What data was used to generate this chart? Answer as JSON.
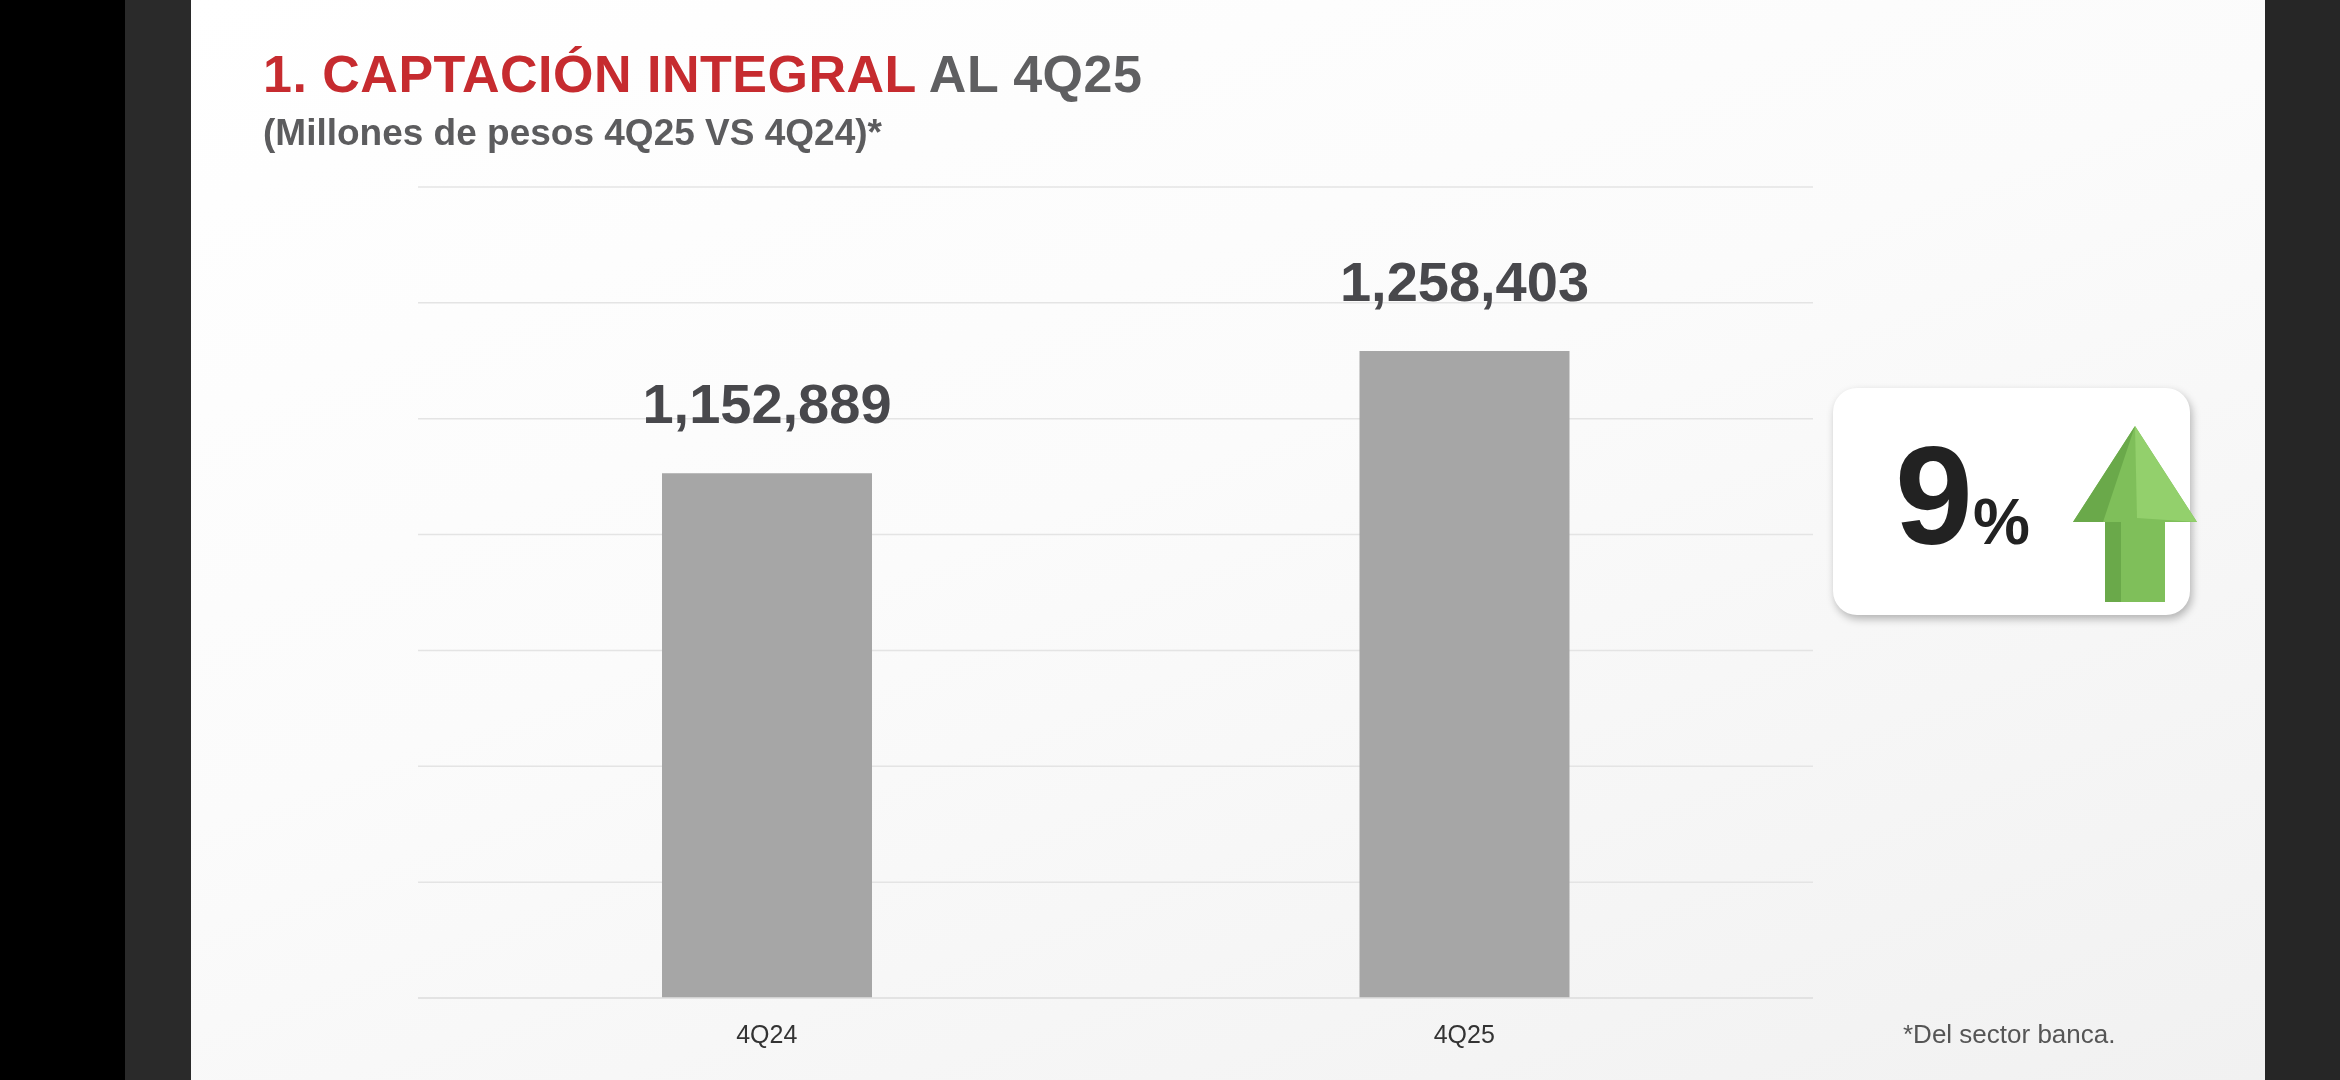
{
  "chart_data": {
    "type": "bar",
    "title": "1. CAPTACIÓN INTEGRAL AL 4Q25",
    "subtitle": "(Millones de pesos 4Q25 VS 4Q24)*",
    "categories": [
      "4Q24",
      "4Q25"
    ],
    "values": [
      1152889,
      1258403
    ],
    "value_labels": [
      "1,152,889",
      "1,258,403"
    ],
    "color": "#a6a6a6",
    "ylim": [
      700000,
      1400000
    ],
    "yticks": [
      700000,
      800000,
      900000,
      1000000,
      1100000,
      1200000,
      1300000,
      1400000
    ],
    "grid": "y",
    "tick_labels": "x",
    "annotations": [
      "9%",
      "*Del sector banca."
    ]
  }
}
